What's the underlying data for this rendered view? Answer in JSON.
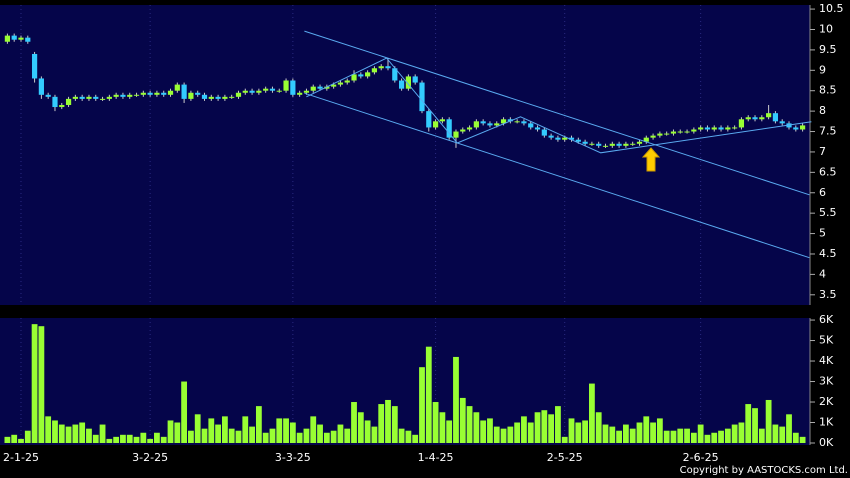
{
  "chart_data": {
    "type": "candlestick",
    "categories": [
      null,
      null,
      "2-1-25",
      null,
      null,
      null,
      null,
      null,
      null,
      null,
      null,
      null,
      null,
      null,
      null,
      null,
      null,
      null,
      null,
      null,
      null,
      "3-2-25",
      null,
      null,
      null,
      null,
      null,
      null,
      null,
      null,
      null,
      null,
      null,
      null,
      null,
      null,
      null,
      null,
      null,
      null,
      null,
      null,
      "3-3-25",
      null,
      null,
      null,
      null,
      null,
      null,
      null,
      null,
      null,
      null,
      null,
      null,
      null,
      null,
      null,
      null,
      null,
      null,
      null,
      null,
      "1-4-25",
      null,
      null,
      null,
      null,
      null,
      null,
      null,
      null,
      null,
      null,
      null,
      null,
      null,
      null,
      null,
      null,
      null,
      null,
      "2-5-25",
      null,
      null,
      null,
      null,
      null,
      null,
      null,
      null,
      null,
      null,
      null,
      null,
      null,
      null,
      null,
      null,
      null,
      null,
      null,
      "2-6-25",
      null,
      null,
      null,
      null,
      null,
      null,
      null,
      null,
      null,
      null,
      null,
      null,
      null,
      null,
      null
    ],
    "open": [
      9.7,
      9.85,
      9.75,
      9.8,
      9.4,
      8.8,
      8.4,
      8.35,
      8.1,
      8.15,
      8.3,
      8.35,
      8.3,
      8.35,
      8.3,
      8.3,
      8.35,
      8.4,
      8.35,
      8.4,
      8.4,
      8.45,
      8.4,
      8.45,
      8.4,
      8.5,
      8.65,
      8.3,
      8.45,
      8.4,
      8.3,
      8.35,
      8.3,
      8.35,
      8.35,
      8.45,
      8.5,
      8.45,
      8.5,
      8.55,
      8.5,
      8.5,
      8.75,
      8.4,
      8.45,
      8.5,
      8.6,
      8.55,
      8.6,
      8.65,
      8.7,
      8.75,
      8.9,
      8.85,
      8.95,
      9.05,
      9.1,
      9.05,
      8.75,
      8.55,
      8.85,
      8.7,
      8.0,
      7.6,
      7.75,
      7.8,
      7.35,
      7.5,
      7.55,
      7.6,
      7.75,
      7.7,
      7.65,
      7.7,
      7.8,
      7.75,
      7.75,
      7.7,
      7.6,
      7.55,
      7.4,
      7.35,
      7.3,
      7.35,
      7.3,
      7.25,
      7.2,
      7.2,
      7.15,
      7.15,
      7.2,
      7.15,
      7.2,
      7.2,
      7.25,
      7.35,
      7.4,
      7.45,
      7.45,
      7.5,
      7.5,
      7.5,
      7.55,
      7.6,
      7.55,
      7.6,
      7.55,
      7.6,
      7.6,
      7.8,
      7.85,
      7.8,
      7.85,
      7.95,
      7.75,
      7.7,
      7.6,
      7.55
    ],
    "high": [
      9.9,
      9.9,
      9.85,
      9.85,
      9.45,
      8.85,
      8.45,
      8.4,
      8.2,
      8.35,
      8.4,
      8.4,
      8.4,
      8.4,
      8.35,
      8.4,
      8.45,
      8.45,
      8.45,
      8.45,
      8.5,
      8.5,
      8.5,
      8.5,
      8.55,
      8.7,
      8.7,
      8.5,
      8.5,
      8.45,
      8.4,
      8.4,
      8.4,
      8.4,
      8.5,
      8.55,
      8.55,
      8.55,
      8.6,
      8.6,
      8.55,
      8.8,
      8.8,
      8.5,
      8.55,
      8.65,
      8.65,
      8.65,
      8.7,
      8.75,
      8.8,
      9.0,
      8.95,
      9.0,
      9.1,
      9.15,
      9.3,
      9.1,
      8.8,
      8.9,
      8.9,
      8.75,
      8.05,
      7.8,
      7.85,
      7.85,
      7.55,
      7.6,
      7.65,
      7.8,
      7.8,
      7.75,
      7.75,
      7.85,
      7.85,
      7.8,
      7.8,
      7.75,
      7.65,
      7.6,
      7.45,
      7.4,
      7.4,
      7.4,
      7.35,
      7.3,
      7.25,
      7.25,
      7.2,
      7.25,
      7.25,
      7.25,
      7.25,
      7.3,
      7.4,
      7.45,
      7.5,
      7.5,
      7.55,
      7.55,
      7.55,
      7.6,
      7.65,
      7.65,
      7.65,
      7.65,
      7.65,
      7.65,
      7.85,
      7.9,
      7.9,
      7.9,
      8.15,
      8.0,
      7.8,
      7.75,
      7.65,
      7.7
    ],
    "low": [
      9.65,
      9.7,
      9.7,
      9.65,
      8.7,
      8.3,
      8.3,
      8.0,
      8.05,
      8.1,
      8.25,
      8.25,
      8.25,
      8.25,
      8.25,
      8.25,
      8.3,
      8.3,
      8.3,
      8.35,
      8.35,
      8.35,
      8.35,
      8.35,
      8.35,
      8.45,
      8.2,
      8.25,
      8.35,
      8.25,
      8.25,
      8.25,
      8.25,
      8.3,
      8.3,
      8.4,
      8.4,
      8.4,
      8.45,
      8.45,
      8.45,
      8.45,
      8.35,
      8.35,
      8.4,
      8.45,
      8.5,
      8.5,
      8.55,
      8.6,
      8.65,
      8.7,
      8.8,
      8.8,
      8.9,
      9.0,
      9.0,
      8.7,
      8.5,
      8.5,
      8.65,
      7.95,
      7.5,
      7.55,
      7.7,
      7.3,
      7.1,
      7.45,
      7.5,
      7.55,
      7.65,
      7.6,
      7.6,
      7.65,
      7.7,
      7.7,
      7.65,
      7.55,
      7.5,
      7.35,
      7.3,
      7.25,
      7.25,
      7.25,
      7.2,
      7.15,
      7.15,
      7.1,
      7.1,
      7.1,
      7.1,
      7.1,
      7.15,
      7.15,
      7.2,
      7.3,
      7.35,
      7.4,
      7.4,
      7.45,
      7.45,
      7.45,
      7.5,
      7.5,
      7.5,
      7.5,
      7.5,
      7.55,
      7.55,
      7.75,
      7.75,
      7.75,
      7.8,
      7.7,
      7.65,
      7.55,
      7.5,
      7.5
    ],
    "close": [
      9.85,
      9.75,
      9.8,
      9.7,
      8.8,
      8.4,
      8.35,
      8.1,
      8.15,
      8.3,
      8.35,
      8.3,
      8.35,
      8.3,
      8.3,
      8.35,
      8.4,
      8.35,
      8.4,
      8.4,
      8.45,
      8.4,
      8.45,
      8.4,
      8.5,
      8.65,
      8.3,
      8.45,
      8.4,
      8.3,
      8.35,
      8.3,
      8.35,
      8.35,
      8.45,
      8.5,
      8.45,
      8.5,
      8.55,
      8.5,
      8.5,
      8.75,
      8.4,
      8.45,
      8.5,
      8.6,
      8.55,
      8.6,
      8.65,
      8.7,
      8.75,
      8.9,
      8.85,
      8.95,
      9.05,
      9.1,
      9.05,
      8.75,
      8.55,
      8.85,
      8.7,
      8.0,
      7.6,
      7.75,
      7.8,
      7.35,
      7.5,
      7.55,
      7.6,
      7.75,
      7.7,
      7.65,
      7.7,
      7.8,
      7.75,
      7.75,
      7.7,
      7.6,
      7.55,
      7.4,
      7.35,
      7.3,
      7.35,
      7.3,
      7.25,
      7.2,
      7.2,
      7.15,
      7.15,
      7.2,
      7.15,
      7.2,
      7.2,
      7.25,
      7.35,
      7.4,
      7.45,
      7.45,
      7.5,
      7.5,
      7.5,
      7.55,
      7.6,
      7.55,
      7.6,
      7.55,
      7.6,
      7.6,
      7.8,
      7.85,
      7.8,
      7.85,
      7.95,
      7.75,
      7.7,
      7.6,
      7.55,
      7.65
    ],
    "volume": [
      300,
      400,
      200,
      600,
      5800,
      5700,
      1300,
      1100,
      900,
      800,
      900,
      1000,
      700,
      400,
      900,
      200,
      300,
      400,
      400,
      300,
      500,
      200,
      500,
      300,
      1100,
      1000,
      3000,
      600,
      1400,
      700,
      1200,
      900,
      1300,
      700,
      600,
      1300,
      800,
      1800,
      500,
      700,
      1200,
      1200,
      1000,
      500,
      700,
      1300,
      900,
      500,
      600,
      900,
      700,
      2000,
      1500,
      1100,
      800,
      1900,
      2100,
      1800,
      700,
      600,
      400,
      3700,
      4700,
      2000,
      1500,
      1100,
      4200,
      2200,
      1800,
      1500,
      1100,
      1200,
      800,
      700,
      800,
      1000,
      1300,
      1000,
      1500,
      1600,
      1400,
      1800,
      300,
      1200,
      1000,
      1100,
      2900,
      1500,
      900,
      800,
      600,
      900,
      700,
      1000,
      1300,
      1000,
      1200,
      600,
      600,
      700,
      700,
      500,
      900,
      400,
      500,
      600,
      700,
      900,
      1000,
      1900,
      1700,
      700,
      2100,
      900,
      800,
      1400,
      500,
      300
    ],
    "up_color": "#99ff33",
    "down_color": "#33ccff",
    "volume_color": "#99ff33",
    "ylim": [
      3.25,
      10.6
    ],
    "yticks": [
      3.5,
      4,
      4.5,
      5,
      5.5,
      6,
      6.5,
      7,
      7.5,
      8,
      8.5,
      9,
      9.5,
      10,
      10.5
    ],
    "vlim": [
      0,
      6100
    ],
    "vticks": [
      {
        "value": 0,
        "label": "0K"
      },
      {
        "value": 1000,
        "label": "1K"
      },
      {
        "value": 2000,
        "label": "2K"
      },
      {
        "value": 3000,
        "label": "3K"
      },
      {
        "value": 4000,
        "label": "4K"
      },
      {
        "value": 5000,
        "label": "5K"
      },
      {
        "value": 6000,
        "label": "6K"
      }
    ],
    "grid": true,
    "trendline_color": "#5aaaf0",
    "trendlines": [
      {
        "x": [
          43.7,
          118
        ],
        "y": [
          9.96,
          5.95
        ]
      },
      {
        "x": [
          43.7,
          118
        ],
        "y": [
          8.44,
          4.41
        ]
      },
      {
        "x": [
          44.0,
          55.8,
          66.2,
          75.5,
          87.3,
          118.3
        ],
        "y": [
          8.35,
          9.3,
          7.22,
          7.86,
          6.98,
          7.74
        ]
      }
    ]
  },
  "footer": "Copyright by AASTOCKS.com Ltd."
}
